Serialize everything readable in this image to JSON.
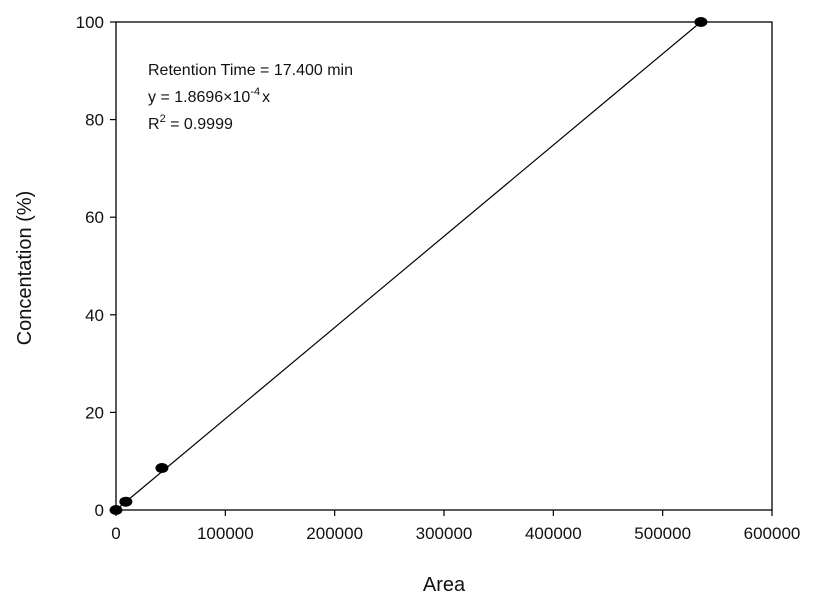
{
  "chart_data": {
    "type": "scatter",
    "title": "",
    "xlabel": "Area",
    "ylabel": "Concentation (%)",
    "xlim": [
      0,
      600000
    ],
    "ylim": [
      0,
      100
    ],
    "grid": false,
    "x_ticks": [
      0,
      100000,
      200000,
      300000,
      400000,
      500000,
      600000
    ],
    "x_tick_labels": [
      "0",
      "100000",
      "200000",
      "300000",
      "400000",
      "500000",
      "600000"
    ],
    "y_ticks": [
      0,
      20,
      40,
      60,
      80,
      100
    ],
    "y_tick_labels": [
      "0",
      "20",
      "40",
      "60",
      "80",
      "100"
    ],
    "series": [
      {
        "points": [
          {
            "x": 0,
            "y": 0
          },
          {
            "x": 9000,
            "y": 1.7
          },
          {
            "x": 42000,
            "y": 8.6
          },
          {
            "x": 535000,
            "y": 100
          }
        ],
        "color": "#000000"
      }
    ],
    "fit_line": {
      "slope": 0.00018696,
      "intercept": 0,
      "x_range": [
        0,
        535000
      ],
      "color": "#000000"
    },
    "annotations": {
      "line1": "Retention Time = 17.400 min",
      "line2_prefix": "y = 1.8696×10",
      "line2_exp": "-4",
      "line2_suffix": "x",
      "line3_prefix": "R",
      "line3_exp": "2",
      "line3_suffix": " = 0.9999"
    }
  }
}
